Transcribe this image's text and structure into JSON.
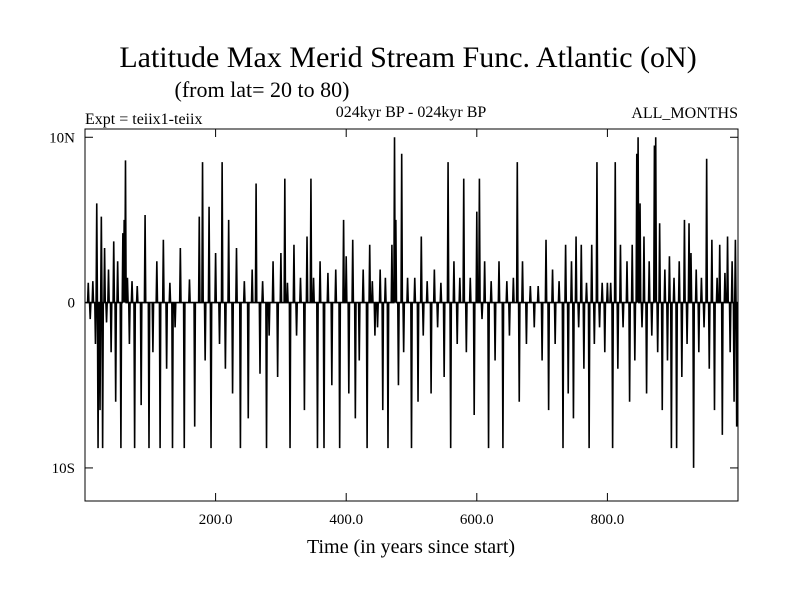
{
  "chart_data": {
    "type": "line",
    "title": "Latitude Max Merid Stream Func. Atlantic (oN)",
    "subtitle": "(from lat= 20 to 80)",
    "annotations": {
      "experiment": "Expt = teiix1-teiix",
      "period": "024kyr BP - 024kyr BP",
      "months": "ALL_MONTHS"
    },
    "xlabel": "Time (in years since start)",
    "ylabel": "",
    "xlim": [
      0,
      1000
    ],
    "ylim": [
      -12,
      10.5
    ],
    "x_ticks": [
      200,
      400,
      600,
      800
    ],
    "x_tick_labels": [
      "200.0",
      "400.0",
      "600.0",
      "800.0"
    ],
    "y_ticks": [
      10,
      0,
      -10
    ],
    "y_tick_labels": [
      "10N",
      "0",
      "10S"
    ],
    "grid": false,
    "legend": "none",
    "series_style": {
      "color": "#000000"
    },
    "x": {
      "start": 1,
      "step": 1,
      "count": 1000
    },
    "spikes": [
      [
        5,
        1.2
      ],
      [
        8,
        -1.0
      ],
      [
        12,
        1.3
      ],
      [
        16,
        -2.5
      ],
      [
        18,
        6.0
      ],
      [
        20,
        -8.8
      ],
      [
        23,
        -6.5
      ],
      [
        25,
        5.2
      ],
      [
        27,
        -8.8
      ],
      [
        30,
        3.3
      ],
      [
        33,
        -1.2
      ],
      [
        36,
        2.0
      ],
      [
        40,
        -3.0
      ],
      [
        44,
        3.7
      ],
      [
        47,
        -6.0
      ],
      [
        50,
        2.5
      ],
      [
        55,
        -8.8
      ],
      [
        58,
        4.2
      ],
      [
        60,
        5.0
      ],
      [
        62,
        8.6
      ],
      [
        65,
        1.5
      ],
      [
        68,
        -2.5
      ],
      [
        72,
        1.3
      ],
      [
        76,
        -8.8
      ],
      [
        80,
        1.0
      ],
      [
        86,
        -6.2
      ],
      [
        92,
        5.3
      ],
      [
        98,
        -8.8
      ],
      [
        104,
        -3.0
      ],
      [
        110,
        2.5
      ],
      [
        115,
        -8.8
      ],
      [
        120,
        3.8
      ],
      [
        125,
        -4.0
      ],
      [
        130,
        1.2
      ],
      [
        134,
        -8.8
      ],
      [
        138,
        -1.5
      ],
      [
        146,
        3.3
      ],
      [
        152,
        -8.8
      ],
      [
        160,
        1.4
      ],
      [
        168,
        -7.5
      ],
      [
        175,
        5.2
      ],
      [
        180,
        8.5
      ],
      [
        184,
        -3.5
      ],
      [
        190,
        5.8
      ],
      [
        193,
        -8.8
      ],
      [
        200,
        3.0
      ],
      [
        206,
        -2.5
      ],
      [
        210,
        8.5
      ],
      [
        215,
        -4.0
      ],
      [
        220,
        5.0
      ],
      [
        226,
        -5.5
      ],
      [
        232,
        3.3
      ],
      [
        238,
        -8.8
      ],
      [
        244,
        1.3
      ],
      [
        250,
        -7.0
      ],
      [
        256,
        2.0
      ],
      [
        262,
        7.2
      ],
      [
        268,
        -4.3
      ],
      [
        272,
        1.3
      ],
      [
        278,
        -8.8
      ],
      [
        282,
        -2.0
      ],
      [
        288,
        2.5
      ],
      [
        295,
        -4.5
      ],
      [
        300,
        3.0
      ],
      [
        306,
        7.5
      ],
      [
        310,
        1.2
      ],
      [
        314,
        -8.8
      ],
      [
        320,
        3.5
      ],
      [
        324,
        -2.0
      ],
      [
        330,
        1.5
      ],
      [
        336,
        -6.5
      ],
      [
        340,
        4.0
      ],
      [
        346,
        7.5
      ],
      [
        350,
        1.5
      ],
      [
        356,
        -8.8
      ],
      [
        360,
        2.5
      ],
      [
        366,
        -8.8
      ],
      [
        372,
        1.8
      ],
      [
        378,
        -5.0
      ],
      [
        384,
        2.0
      ],
      [
        390,
        -8.8
      ],
      [
        396,
        5.0
      ],
      [
        400,
        2.8
      ],
      [
        404,
        -5.5
      ],
      [
        410,
        3.8
      ],
      [
        414,
        -7.0
      ],
      [
        420,
        -3.5
      ],
      [
        426,
        2.0
      ],
      [
        432,
        -8.8
      ],
      [
        436,
        3.5
      ],
      [
        440,
        1.3
      ],
      [
        444,
        -2.0
      ],
      [
        448,
        -1.5
      ],
      [
        452,
        2.0
      ],
      [
        456,
        -6.5
      ],
      [
        460,
        1.5
      ],
      [
        464,
        -8.8
      ],
      [
        470,
        3.5
      ],
      [
        474,
        10.0
      ],
      [
        476,
        5.0
      ],
      [
        480,
        -5.0
      ],
      [
        485,
        9.0
      ],
      [
        488,
        -3.0
      ],
      [
        494,
        1.5
      ],
      [
        500,
        -8.8
      ],
      [
        505,
        1.5
      ],
      [
        510,
        -6.0
      ],
      [
        515,
        4.0
      ],
      [
        518,
        -2.0
      ],
      [
        524,
        1.3
      ],
      [
        530,
        -5.5
      ],
      [
        535,
        2.0
      ],
      [
        540,
        -1.5
      ],
      [
        545,
        1.2
      ],
      [
        550,
        -4.5
      ],
      [
        556,
        8.5
      ],
      [
        560,
        -8.8
      ],
      [
        565,
        2.5
      ],
      [
        570,
        -2.5
      ],
      [
        574,
        1.5
      ],
      [
        580,
        7.5
      ],
      [
        584,
        -3.0
      ],
      [
        590,
        1.5
      ],
      [
        596,
        -6.8
      ],
      [
        600,
        5.5
      ],
      [
        604,
        7.5
      ],
      [
        608,
        -1.0
      ],
      [
        612,
        2.5
      ],
      [
        618,
        -8.8
      ],
      [
        622,
        1.3
      ],
      [
        628,
        -3.5
      ],
      [
        634,
        2.5
      ],
      [
        640,
        -8.8
      ],
      [
        646,
        1.3
      ],
      [
        650,
        -2.0
      ],
      [
        656,
        1.5
      ],
      [
        662,
        8.5
      ],
      [
        665,
        -6.0
      ],
      [
        670,
        2.5
      ],
      [
        676,
        -2.5
      ],
      [
        682,
        1.0
      ],
      [
        688,
        -1.5
      ],
      [
        694,
        1.0
      ],
      [
        700,
        -3.5
      ],
      [
        706,
        3.8
      ],
      [
        710,
        -6.5
      ],
      [
        716,
        2.0
      ],
      [
        720,
        -2.5
      ],
      [
        726,
        1.3
      ],
      [
        732,
        -8.8
      ],
      [
        736,
        3.5
      ],
      [
        740,
        -5.5
      ],
      [
        745,
        2.5
      ],
      [
        748,
        -7.0
      ],
      [
        752,
        4.0
      ],
      [
        756,
        -1.5
      ],
      [
        760,
        3.5
      ],
      [
        764,
        -4.0
      ],
      [
        768,
        1.2
      ],
      [
        772,
        -8.8
      ],
      [
        776,
        3.5
      ],
      [
        780,
        -2.5
      ],
      [
        784,
        8.5
      ],
      [
        788,
        -1.5
      ],
      [
        792,
        1.2
      ],
      [
        796,
        -3.0
      ],
      [
        800,
        1.2
      ],
      [
        805,
        1.2
      ],
      [
        808,
        -8.8
      ],
      [
        812,
        8.5
      ],
      [
        816,
        -4.0
      ],
      [
        820,
        3.5
      ],
      [
        824,
        -1.5
      ],
      [
        830,
        2.5
      ],
      [
        834,
        -6.0
      ],
      [
        838,
        3.5
      ],
      [
        842,
        -3.5
      ],
      [
        845,
        9.0
      ],
      [
        847,
        10.0
      ],
      [
        850,
        6.0
      ],
      [
        853,
        -1.5
      ],
      [
        856,
        4.0
      ],
      [
        860,
        -5.5
      ],
      [
        864,
        2.5
      ],
      [
        868,
        -2.0
      ],
      [
        872,
        9.5
      ],
      [
        874,
        10.0
      ],
      [
        877,
        -3.0
      ],
      [
        880,
        4.8
      ],
      [
        884,
        -6.5
      ],
      [
        888,
        2.0
      ],
      [
        892,
        -3.5
      ],
      [
        895,
        2.8
      ],
      [
        898,
        -8.8
      ],
      [
        902,
        1.5
      ],
      [
        906,
        -8.8
      ],
      [
        910,
        2.5
      ],
      [
        914,
        -4.5
      ],
      [
        918,
        5.0
      ],
      [
        922,
        -2.5
      ],
      [
        925,
        4.8
      ],
      [
        928,
        3.0
      ],
      [
        932,
        -10.0
      ],
      [
        936,
        2.0
      ],
      [
        940,
        -3.0
      ],
      [
        944,
        1.5
      ],
      [
        948,
        -1.5
      ],
      [
        952,
        8.7
      ],
      [
        956,
        -4.0
      ],
      [
        960,
        3.8
      ],
      [
        964,
        -6.5
      ],
      [
        968,
        1.5
      ],
      [
        972,
        3.5
      ],
      [
        976,
        -8.0
      ],
      [
        980,
        1.8
      ],
      [
        984,
        4.0
      ],
      [
        988,
        -3.0
      ],
      [
        991,
        2.5
      ],
      [
        994,
        -6.0
      ],
      [
        996,
        3.8
      ],
      [
        998,
        -7.5
      ]
    ]
  }
}
